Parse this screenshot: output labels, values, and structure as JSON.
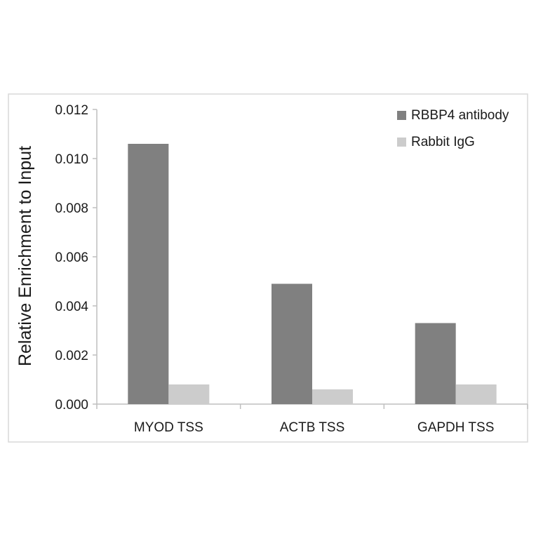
{
  "chart_data": {
    "type": "bar",
    "categories": [
      "MYOD TSS",
      "ACTB TSS",
      "GAPDH TSS"
    ],
    "series": [
      {
        "name": "RBBP4 antibody",
        "values": [
          0.0106,
          0.0049,
          0.0033
        ],
        "color": "#808080"
      },
      {
        "name": "Rabbit IgG",
        "values": [
          0.0008,
          0.0006,
          0.0008
        ],
        "color": "#cccccc"
      }
    ],
    "title": "",
    "xlabel": "",
    "ylabel": "Relative Enrichment to Input",
    "ylim": [
      0,
      0.012
    ],
    "yticks": [
      "0.000",
      "0.002",
      "0.004",
      "0.006",
      "0.008",
      "0.010",
      "0.012"
    ],
    "grid": false,
    "legend_position": "top-right"
  }
}
